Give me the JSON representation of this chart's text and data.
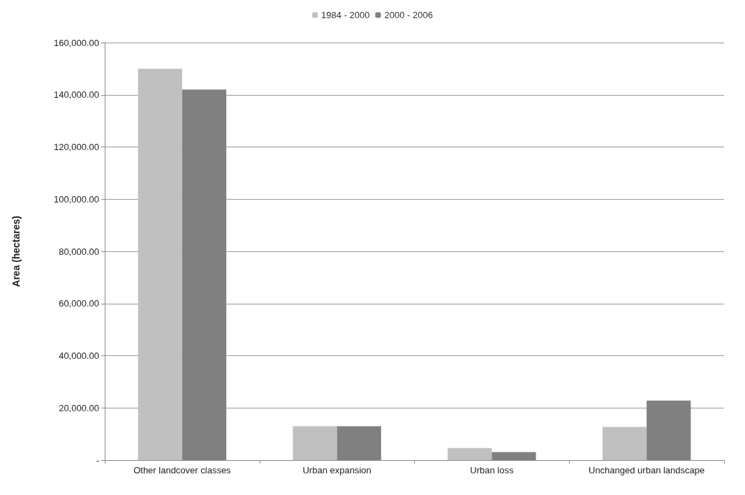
{
  "chart_data": {
    "type": "bar",
    "ylabel": "Area (hectares)",
    "categories": [
      "Other landcover classes",
      "Urban expansion",
      "Urban loss",
      "Unchanged urban landscape"
    ],
    "series": [
      {
        "name": "1984 - 2000",
        "color": "#c0c0c0",
        "values": [
          150000,
          13000,
          4600,
          12700
        ]
      },
      {
        "name": "2000 - 2006",
        "color": "#808080",
        "values": [
          142000,
          13000,
          3100,
          22800
        ]
      }
    ],
    "ylim": [
      0,
      160000
    ],
    "yticks": [
      {
        "value": 0,
        "label": "-"
      },
      {
        "value": 20000,
        "label": "20,000.00"
      },
      {
        "value": 40000,
        "label": "40,000.00"
      },
      {
        "value": 60000,
        "label": "60,000.00"
      },
      {
        "value": 80000,
        "label": "80,000.00"
      },
      {
        "value": 100000,
        "label": "100,000.00"
      },
      {
        "value": 120000,
        "label": "120,000.00"
      },
      {
        "value": 140000,
        "label": "140,000.00"
      },
      {
        "value": 160000,
        "label": "160,000.00"
      }
    ],
    "grid": "y",
    "legend": "top"
  }
}
